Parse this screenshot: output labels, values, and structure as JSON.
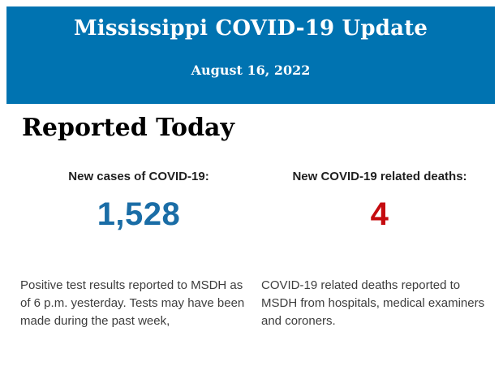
{
  "header": {
    "title": "Mississippi COVID-19 Update",
    "date": "August 16, 2022",
    "background_color": "#0073b1",
    "text_color": "#ffffff"
  },
  "section": {
    "title": "Reported Today"
  },
  "stats": [
    {
      "label": "New cases of COVID-19:",
      "value": "1,528",
      "value_color": "#1a6da6",
      "description": "Positive test results reported to MSDH as\nof 6 p.m. yesterday. Tests may have been\nmade during the past week,"
    },
    {
      "label": "New COVID-19 related deaths:",
      "value": "4",
      "value_color": "#c50b0f",
      "description": "COVID-19 related deaths reported to\nMSDH from hospitals, medical examiners\nand coroners."
    }
  ]
}
